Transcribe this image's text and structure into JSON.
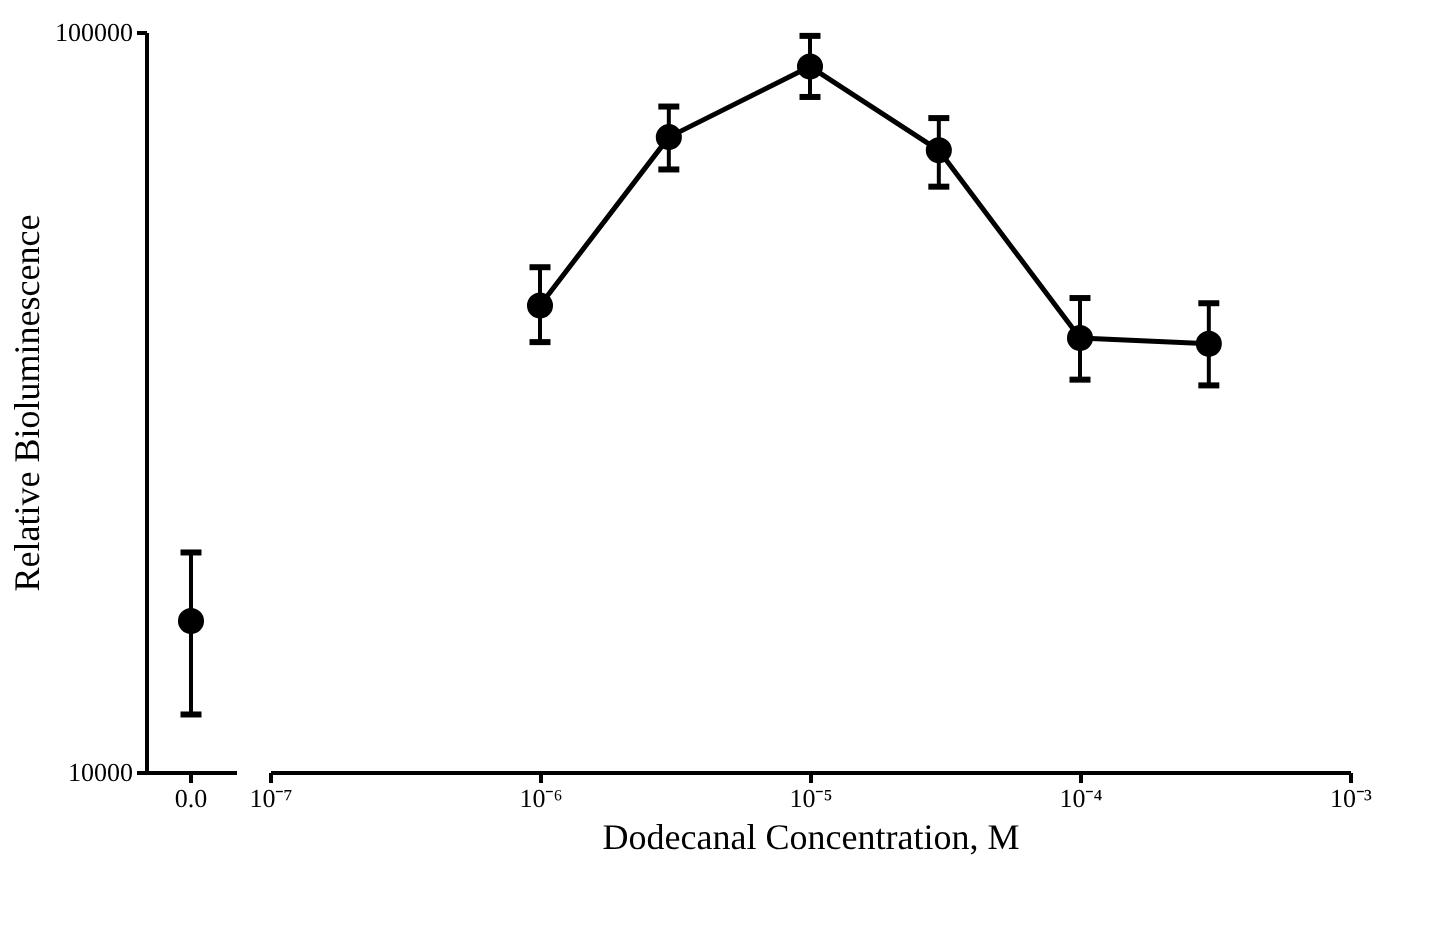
{
  "chart_data": [
    {
      "type": "scatter",
      "ylabel": "Relative Bioluminescence",
      "categories": [
        "0.0"
      ],
      "series": [
        {
          "color": "#000000",
          "values": [
            16000
          ],
          "errors": [
            [
              11960,
              19800
            ]
          ]
        }
      ],
      "ylim": [
        10000,
        100000
      ],
      "yticks": [
        10000,
        100000
      ],
      "log": "y",
      "grid": false,
      "marker": "circle"
    },
    {
      "type": "line",
      "xlabel": "Dodecanal Concentration, M",
      "x": [
        1e-06,
        3e-06,
        1e-05,
        3e-05,
        0.0001,
        0.0003
      ],
      "series": [
        {
          "color": "#000000",
          "values": [
            42700,
            72100,
            89800,
            69200,
            38600,
            37900
          ],
          "errors": [
            [
              38100,
              48100
            ],
            [
              65200,
              79300
            ],
            [
              81700,
              98800
            ],
            [
              61800,
              76500
            ],
            [
              33900,
              43700
            ],
            [
              33300,
              43000
            ]
          ]
        }
      ],
      "xlim": [
        1e-07,
        0.001
      ],
      "xticks": [
        {
          "value": 1e-07,
          "label": "10⁻⁷"
        },
        {
          "value": 1e-06,
          "label": "10⁻⁶"
        },
        {
          "value": 1e-05,
          "label": "10⁻⁵"
        },
        {
          "value": 0.0001,
          "label": "10⁻⁴"
        },
        {
          "value": 0.001,
          "label": "10⁻³"
        }
      ],
      "ylim": [
        10000,
        100000
      ],
      "yticks": [
        10000,
        100000
      ],
      "log": "xy",
      "grid": false,
      "tick_labels": "x",
      "marker": "circle",
      "line_style": "solid"
    }
  ]
}
